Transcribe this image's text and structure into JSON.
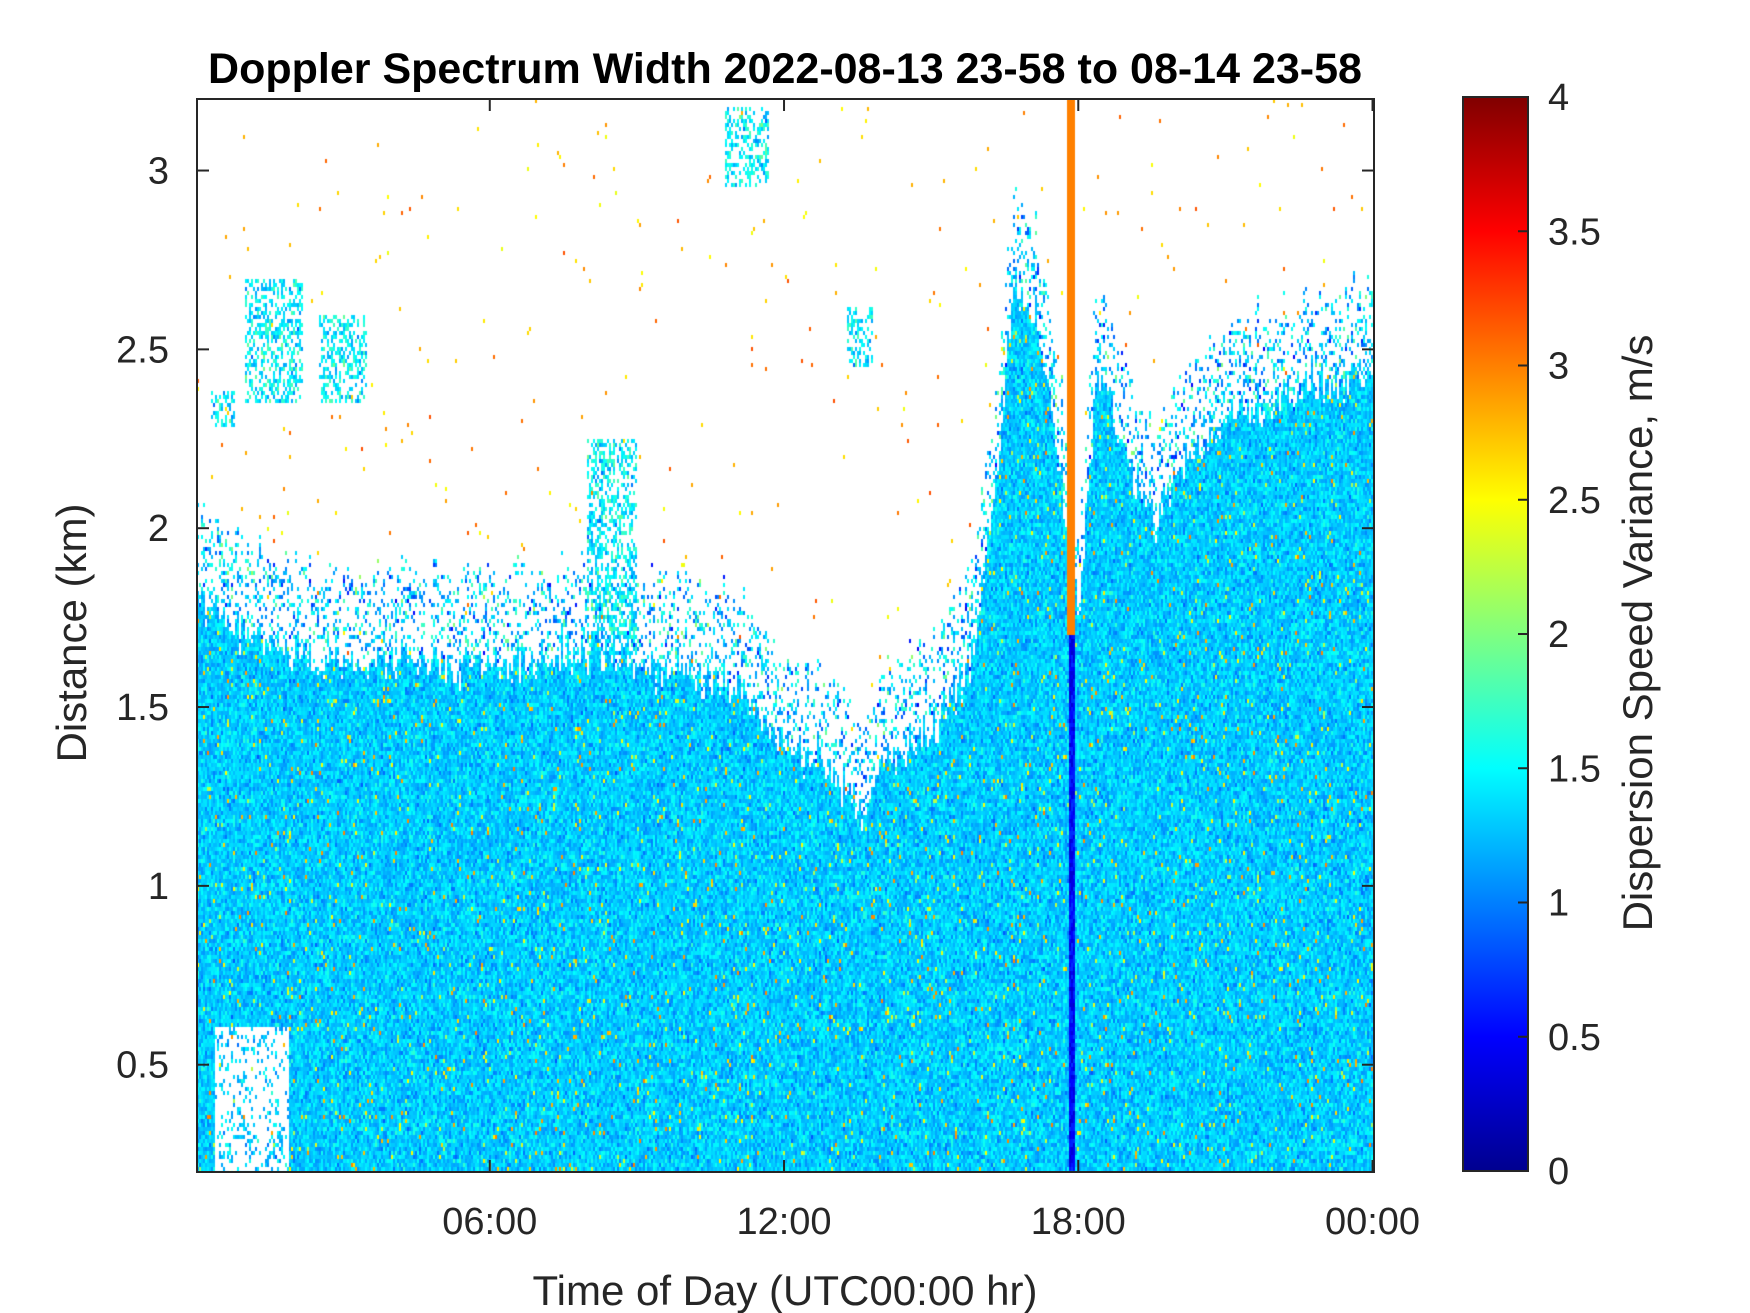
{
  "chart_data": {
    "type": "heatmap",
    "title": "Doppler Spectrum Width 2022-08-13 23-58 to 08-14 23-58",
    "xlabel": "Time of Day (UTC00:00 hr)",
    "ylabel": "Distance (km)",
    "colorbar_label": "Dispersion Speed Variance, m/s",
    "colormap": "jet",
    "xlim_hours": [
      0.03,
      24.03
    ],
    "ylim_km": [
      0.2,
      3.2
    ],
    "clim": [
      0,
      4
    ],
    "x_ticks": [
      {
        "hour": 6,
        "label": "06:00"
      },
      {
        "hour": 12,
        "label": "12:00"
      },
      {
        "hour": 18,
        "label": "18:00"
      },
      {
        "hour": 24,
        "label": "00:00"
      }
    ],
    "y_ticks": [
      {
        "value": 0.5,
        "label": "0.5"
      },
      {
        "value": 1,
        "label": "1"
      },
      {
        "value": 1.5,
        "label": "1.5"
      },
      {
        "value": 2,
        "label": "2"
      },
      {
        "value": 2.5,
        "label": "2.5"
      },
      {
        "value": 3,
        "label": "3"
      }
    ],
    "colorbar_ticks": [
      {
        "value": 0,
        "label": "0"
      },
      {
        "value": 0.5,
        "label": "0.5"
      },
      {
        "value": 1,
        "label": "1"
      },
      {
        "value": 1.5,
        "label": "1.5"
      },
      {
        "value": 2,
        "label": "2"
      },
      {
        "value": 2.5,
        "label": "2.5"
      },
      {
        "value": 3,
        "label": "3"
      },
      {
        "value": 3.5,
        "label": "3.5"
      },
      {
        "value": 4,
        "label": "4"
      }
    ],
    "typical_value": 1.3,
    "echo_top_profile": [
      {
        "hour": 0.0,
        "top_km": 1.8
      },
      {
        "hour": 1.0,
        "top_km": 1.7
      },
      {
        "hour": 2.0,
        "top_km": 1.65
      },
      {
        "hour": 3.0,
        "top_km": 1.62
      },
      {
        "hour": 4.0,
        "top_km": 1.62
      },
      {
        "hour": 5.0,
        "top_km": 1.63
      },
      {
        "hour": 6.0,
        "top_km": 1.62
      },
      {
        "hour": 7.0,
        "top_km": 1.62
      },
      {
        "hour": 8.0,
        "top_km": 1.65
      },
      {
        "hour": 9.0,
        "top_km": 1.63
      },
      {
        "hour": 10.0,
        "top_km": 1.6
      },
      {
        "hour": 11.0,
        "top_km": 1.55
      },
      {
        "hour": 12.0,
        "top_km": 1.4
      },
      {
        "hour": 13.0,
        "top_km": 1.33
      },
      {
        "hour": 13.6,
        "top_km": 1.2
      },
      {
        "hour": 14.0,
        "top_km": 1.35
      },
      {
        "hour": 15.0,
        "top_km": 1.45
      },
      {
        "hour": 15.8,
        "top_km": 1.6
      },
      {
        "hour": 16.3,
        "top_km": 2.1
      },
      {
        "hour": 16.7,
        "top_km": 2.7
      },
      {
        "hour": 17.2,
        "top_km": 2.55
      },
      {
        "hour": 17.6,
        "top_km": 2.2
      },
      {
        "hour": 18.0,
        "top_km": 1.75
      },
      {
        "hour": 18.4,
        "top_km": 2.45
      },
      {
        "hour": 19.0,
        "top_km": 2.2
      },
      {
        "hour": 19.6,
        "top_km": 2.0
      },
      {
        "hour": 20.0,
        "top_km": 2.15
      },
      {
        "hour": 21.0,
        "top_km": 2.3
      },
      {
        "hour": 22.0,
        "top_km": 2.35
      },
      {
        "hour": 23.0,
        "top_km": 2.4
      },
      {
        "hour": 24.0,
        "top_km": 2.45
      }
    ],
    "upper_clusters": [
      {
        "hour_from": 0.3,
        "hour_to": 0.8,
        "km_from": 2.28,
        "km_to": 2.38
      },
      {
        "hour_from": 1.0,
        "hour_to": 2.2,
        "km_from": 2.35,
        "km_to": 2.7
      },
      {
        "hour_from": 2.5,
        "hour_to": 3.5,
        "km_from": 2.35,
        "km_to": 2.6
      },
      {
        "hour_from": 10.8,
        "hour_to": 11.7,
        "km_from": 2.95,
        "km_to": 3.18
      },
      {
        "hour_from": 13.3,
        "hour_to": 13.8,
        "km_from": 2.45,
        "km_to": 2.62
      },
      {
        "hour_from": 8.0,
        "hour_to": 9.0,
        "km_from": 1.65,
        "km_to": 2.25
      }
    ],
    "clear_patches": [
      {
        "hour_from": 0.4,
        "hour_to": 1.9,
        "km_from": 0.2,
        "km_to": 0.6
      }
    ],
    "anomaly_band": {
      "hour_from": 17.75,
      "hour_to": 17.95,
      "km_from": 1.7,
      "km_to": 3.2,
      "value": 3.0
    },
    "low_value_band": {
      "hour_from": 17.8,
      "hour_to": 17.95,
      "km_from": 0.2,
      "km_to": 1.7,
      "value": 0.3
    }
  }
}
